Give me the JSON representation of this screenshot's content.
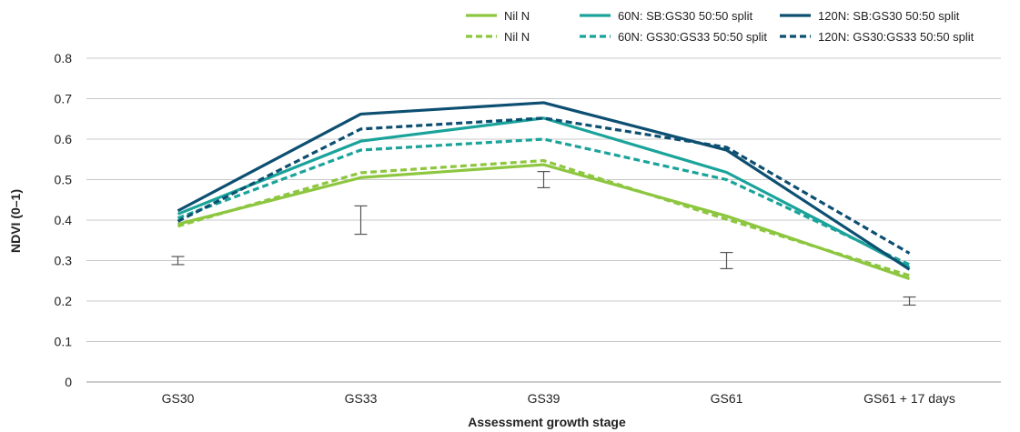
{
  "chart_data": {
    "type": "line",
    "title": "",
    "xlabel": "Assessment growth stage",
    "ylabel": "NDVI (0–1)",
    "categories": [
      "GS30",
      "GS33",
      "GS39",
      "GS61",
      "GS61 + 17 days"
    ],
    "ylim": [
      0,
      0.8
    ],
    "yticks": [
      "0",
      "0.1",
      "0.2",
      "0.3",
      "0.4",
      "0.5",
      "0.6",
      "0.7",
      "0.8"
    ],
    "grid": true,
    "legend_position": "top-right",
    "series": [
      {
        "name": "Nil N",
        "color": "#8dc63f",
        "style": "solid",
        "values": [
          0.39,
          0.505,
          0.537,
          0.41,
          0.255
        ]
      },
      {
        "name": "Nil N",
        "color": "#8dc63f",
        "style": "dashed",
        "values": [
          0.385,
          0.517,
          0.547,
          0.402,
          0.263
        ]
      },
      {
        "name": "60N: SB:GS30 50:50 split",
        "color": "#1aa39a",
        "style": "solid",
        "values": [
          0.415,
          0.595,
          0.652,
          0.518,
          0.283
        ]
      },
      {
        "name": "60N: GS30:GS33 50:50 split",
        "color": "#1aa39a",
        "style": "dashed",
        "values": [
          0.405,
          0.573,
          0.6,
          0.5,
          0.29
        ]
      },
      {
        "name": "120N: SB:GS30 50:50 split",
        "color": "#0d4f71",
        "style": "solid",
        "values": [
          0.423,
          0.662,
          0.69,
          0.573,
          0.278
        ]
      },
      {
        "name": "120N: GS30:GS33 50:50 split",
        "color": "#0d4f71",
        "style": "dashed",
        "values": [
          0.397,
          0.625,
          0.652,
          0.58,
          0.318
        ]
      }
    ],
    "error_bars": [
      {
        "category": "GS30",
        "center": 0.3,
        "low": 0.29,
        "high": 0.31
      },
      {
        "category": "GS33",
        "center": 0.4,
        "low": 0.365,
        "high": 0.435
      },
      {
        "category": "GS39",
        "center": 0.5,
        "low": 0.48,
        "high": 0.52
      },
      {
        "category": "GS61",
        "center": 0.3,
        "low": 0.28,
        "high": 0.32
      },
      {
        "category": "GS61 + 17 days",
        "center": 0.2,
        "low": 0.19,
        "high": 0.21
      }
    ]
  }
}
